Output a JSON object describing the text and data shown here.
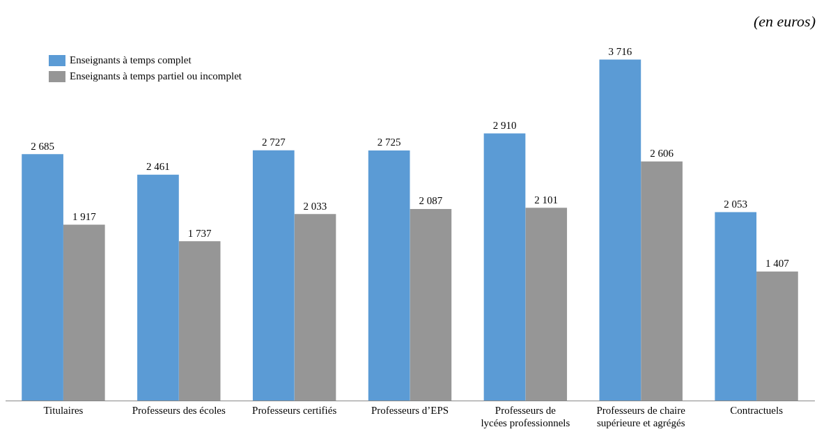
{
  "chart_data": {
    "type": "bar",
    "annotations": [
      "(en euros)"
    ],
    "legend": "top left",
    "grid": false,
    "categories": [
      "Titulaires",
      "Professeurs des écoles",
      "Professeurs certifiés",
      "Professeurs d’EPS",
      "Professeurs de lycées professionnels",
      "Professeurs de chaire supérieure et agrégés",
      "Contractuels"
    ],
    "series": [
      {
        "name": "Enseignants à temps complet",
        "color": "#5b9bd5",
        "values": [
          2685,
          2461,
          2727,
          2725,
          2910,
          3716,
          2053
        ],
        "value_labels": [
          "2 685",
          "2 461",
          "2 727",
          "2 725",
          "2 910",
          "3 716",
          "2 053"
        ]
      },
      {
        "name": "Enseignants à temps partiel ou incomplet",
        "color": "#969696",
        "values": [
          1917,
          1737,
          2033,
          2087,
          2101,
          2606,
          1407
        ],
        "value_labels": [
          "1 917",
          "1 737",
          "2 033",
          "2 087",
          "2 101",
          "2 606",
          "1 407"
        ]
      }
    ]
  }
}
